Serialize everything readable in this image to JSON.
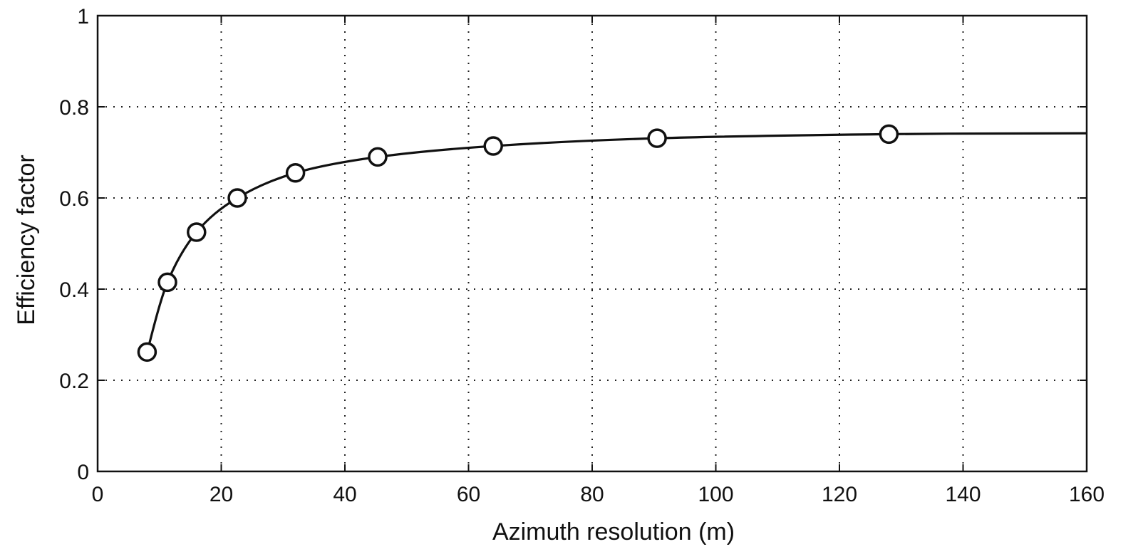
{
  "chart_data": {
    "type": "line",
    "title": "",
    "xlabel": "Azimuth resolution  (m)",
    "ylabel": "Efficiency factor",
    "xlim": [
      0,
      160
    ],
    "ylim": [
      0,
      1
    ],
    "xticks": [
      0,
      20,
      40,
      60,
      80,
      100,
      120,
      140,
      160
    ],
    "yticks": [
      0,
      0.2,
      0.4,
      0.6,
      0.8,
      1
    ],
    "xtick_labels": [
      "0",
      "20",
      "40",
      "60",
      "80",
      "100",
      "120",
      "140",
      "160"
    ],
    "ytick_labels": [
      "0",
      "0.2",
      "0.4",
      "0.6",
      "0.8",
      "1"
    ],
    "grid": true,
    "legend": "none",
    "series": [
      {
        "marker": "circle",
        "color": "#111111",
        "x": [
          8,
          11.3,
          16,
          22.6,
          32,
          45.3,
          64,
          90.5,
          128
        ],
        "y": [
          0.262,
          0.415,
          0.525,
          0.6,
          0.655,
          0.69,
          0.714,
          0.731,
          0.74
        ]
      }
    ],
    "curve_extends_to_x": 160,
    "curve_end_y": 0.742
  }
}
